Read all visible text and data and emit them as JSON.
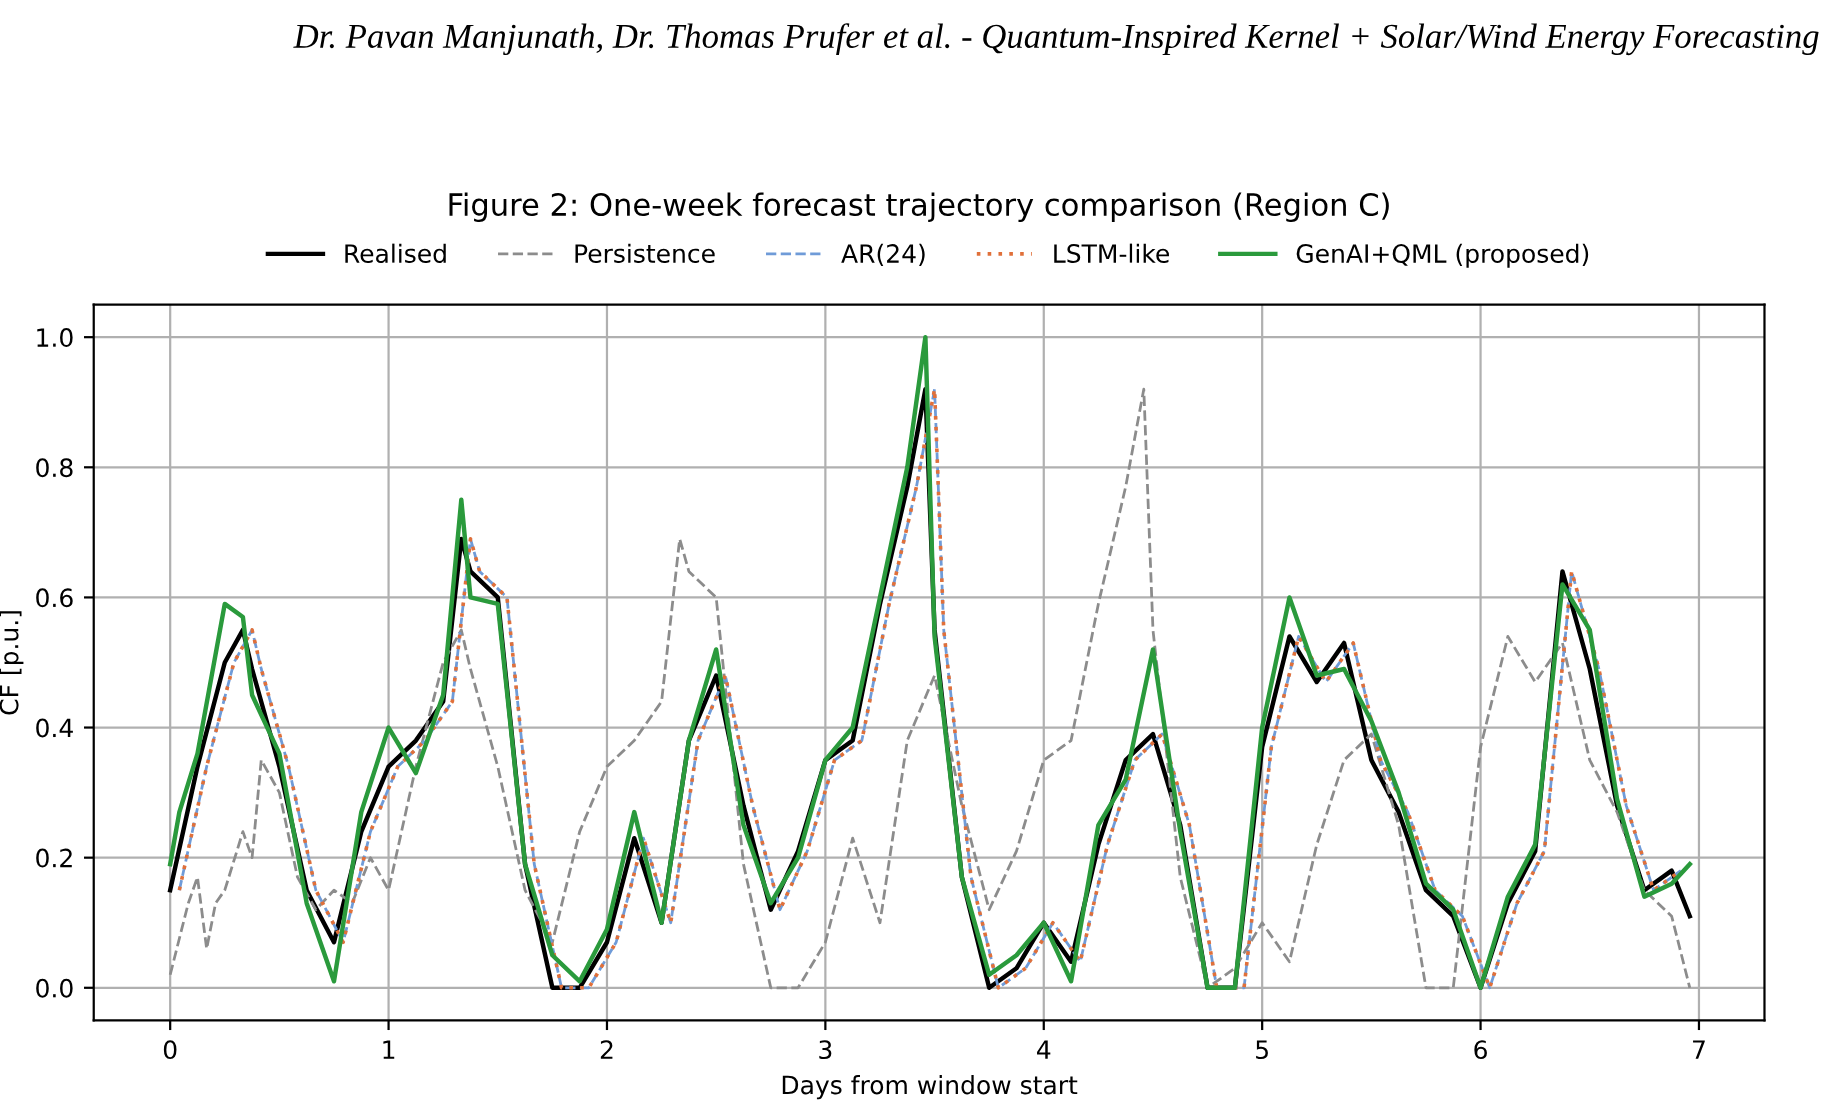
{
  "chart_data": {
    "type": "line",
    "title": "Figure 2: One-week forecast trajectory comparison (Region C)",
    "annotations": [
      "Dr. Pavan Manjunath, Dr. Thomas Prufer et al. - Quantum-Inspired Kernel + Solar/Wind Energy Forecasting"
    ],
    "xlabel": "Days from window start",
    "ylabel": "CF [p.u.]",
    "xlim": [
      -0.35,
      7.3
    ],
    "xticks": [
      0,
      1,
      2,
      3,
      4,
      5,
      6,
      7
    ],
    "ylim": [
      -0.05,
      1.05
    ],
    "yticks": [
      {
        "value": 0,
        "label": "0.0"
      },
      0.2,
      0.4,
      0.6,
      0.8,
      {
        "value": 1,
        "label": "1.0"
      }
    ],
    "grid": true,
    "legend": "top",
    "series": [
      {
        "name": "Realised",
        "color": "#000000",
        "line_style": "solid",
        "x": [
          0,
          0.125,
          0.25,
          0.333,
          0.375,
          0.5,
          0.625,
          0.75,
          0.875,
          1,
          1.125,
          1.25,
          1.333,
          1.375,
          1.5,
          1.625,
          1.75,
          1.875,
          2,
          2.125,
          2.25,
          2.375,
          2.5,
          2.625,
          2.75,
          2.875,
          3,
          3.125,
          3.25,
          3.375,
          3.458,
          3.5,
          3.625,
          3.75,
          3.875,
          4,
          4.125,
          4.25,
          4.375,
          4.5,
          4.625,
          4.75,
          4.875,
          5,
          5.125,
          5.25,
          5.375,
          5.5,
          5.625,
          5.75,
          5.875,
          6,
          6.125,
          6.25,
          6.375,
          6.5,
          6.625,
          6.75,
          6.875,
          6.958
        ],
        "values": [
          0.15,
          0.34,
          0.5,
          0.55,
          0.49,
          0.34,
          0.15,
          0.07,
          0.24,
          0.34,
          0.38,
          0.44,
          0.69,
          0.64,
          0.6,
          0.19,
          0,
          0,
          0.07,
          0.23,
          0.1,
          0.38,
          0.48,
          0.28,
          0.12,
          0.21,
          0.35,
          0.38,
          0.59,
          0.77,
          0.92,
          0.55,
          0.17,
          0,
          0.03,
          0.1,
          0.04,
          0.22,
          0.35,
          0.39,
          0.25,
          0,
          0,
          0.37,
          0.54,
          0.47,
          0.53,
          0.35,
          0.27,
          0.15,
          0.11,
          0,
          0.13,
          0.21,
          0.64,
          0.49,
          0.28,
          0.15,
          0.18,
          0.11
        ]
      },
      {
        "name": "Persistence",
        "color": "#8c8c8c",
        "line_style": "dashed",
        "x": [
          0,
          0.083,
          0.125,
          0.167,
          0.208,
          0.25,
          0.333,
          0.375,
          0.417,
          0.5,
          0.583,
          0.667,
          0.75,
          0.833,
          0.917,
          1,
          1.125,
          1.25,
          1.333,
          1.375,
          1.5,
          1.625,
          1.75,
          1.875,
          2,
          2.125,
          2.25,
          2.333,
          2.375,
          2.5,
          2.625,
          2.75,
          2.875,
          3,
          3.125,
          3.25,
          3.375,
          3.5,
          3.625,
          3.75,
          3.875,
          4,
          4.125,
          4.25,
          4.375,
          4.458,
          4.5,
          4.625,
          4.75,
          4.875,
          5,
          5.125,
          5.25,
          5.375,
          5.5,
          5.625,
          5.75,
          5.875,
          6,
          6.125,
          6.25,
          6.375,
          6.5,
          6.625,
          6.75,
          6.875,
          6.958
        ],
        "values": [
          0.02,
          0.13,
          0.17,
          0.06,
          0.13,
          0.15,
          0.24,
          0.2,
          0.35,
          0.3,
          0.17,
          0.12,
          0.15,
          0.13,
          0.2,
          0.15,
          0.34,
          0.5,
          0.55,
          0.49,
          0.34,
          0.15,
          0.07,
          0.24,
          0.34,
          0.38,
          0.44,
          0.69,
          0.64,
          0.6,
          0.19,
          0,
          0,
          0.07,
          0.23,
          0.1,
          0.38,
          0.48,
          0.28,
          0.12,
          0.21,
          0.35,
          0.38,
          0.59,
          0.77,
          0.92,
          0.55,
          0.17,
          0,
          0.03,
          0.1,
          0.04,
          0.22,
          0.35,
          0.39,
          0.25,
          0,
          0,
          0.37,
          0.54,
          0.47,
          0.53,
          0.35,
          0.27,
          0.15,
          0.11,
          0
        ]
      },
      {
        "name": "AR(24)",
        "color": "#6f9bd8",
        "line_style": "dashed",
        "x": [
          0.042,
          0.167,
          0.292,
          0.375,
          0.417,
          0.542,
          0.667,
          0.792,
          0.917,
          1.042,
          1.167,
          1.292,
          1.375,
          1.417,
          1.542,
          1.667,
          1.792,
          1.917,
          2.042,
          2.167,
          2.292,
          2.417,
          2.542,
          2.667,
          2.792,
          2.917,
          3.042,
          3.167,
          3.292,
          3.417,
          3.5,
          3.542,
          3.667,
          3.792,
          3.917,
          4.042,
          4.167,
          4.292,
          4.417,
          4.542,
          4.667,
          4.792,
          4.917,
          5.042,
          5.167,
          5.292,
          5.417,
          5.542,
          5.667,
          5.792,
          5.917,
          6.042,
          6.167,
          6.292,
          6.417,
          6.542,
          6.667,
          6.792,
          6.917
        ],
        "values": [
          0.15,
          0.34,
          0.5,
          0.55,
          0.49,
          0.34,
          0.15,
          0.07,
          0.24,
          0.34,
          0.38,
          0.44,
          0.69,
          0.64,
          0.6,
          0.19,
          0,
          0,
          0.07,
          0.23,
          0.1,
          0.38,
          0.48,
          0.28,
          0.12,
          0.21,
          0.35,
          0.38,
          0.59,
          0.77,
          0.92,
          0.55,
          0.17,
          0,
          0.03,
          0.1,
          0.04,
          0.22,
          0.35,
          0.39,
          0.25,
          0,
          0,
          0.37,
          0.54,
          0.47,
          0.53,
          0.35,
          0.27,
          0.15,
          0.11,
          0,
          0.13,
          0.21,
          0.64,
          0.49,
          0.28,
          0.15,
          0.18
        ]
      },
      {
        "name": "LSTM-like",
        "color": "#e0703a",
        "line_style": "dotted",
        "x": [
          0.042,
          0.167,
          0.292,
          0.375,
          0.417,
          0.542,
          0.667,
          0.792,
          0.917,
          1.042,
          1.167,
          1.292,
          1.375,
          1.417,
          1.542,
          1.667,
          1.792,
          1.917,
          2.042,
          2.167,
          2.292,
          2.417,
          2.542,
          2.667,
          2.792,
          2.917,
          3.042,
          3.167,
          3.292,
          3.417,
          3.5,
          3.542,
          3.667,
          3.792,
          3.917,
          4.042,
          4.167,
          4.292,
          4.417,
          4.542,
          4.667,
          4.792,
          4.917,
          5.042,
          5.167,
          5.292,
          5.417,
          5.542,
          5.667,
          5.792,
          5.917,
          6.042,
          6.167,
          6.292,
          6.417,
          6.542,
          6.667,
          6.792,
          6.917
        ],
        "values": [
          0.15,
          0.34,
          0.5,
          0.55,
          0.49,
          0.34,
          0.15,
          0.07,
          0.24,
          0.34,
          0.38,
          0.44,
          0.69,
          0.64,
          0.6,
          0.19,
          0,
          0,
          0.07,
          0.23,
          0.1,
          0.38,
          0.48,
          0.28,
          0.12,
          0.21,
          0.35,
          0.38,
          0.59,
          0.77,
          0.92,
          0.55,
          0.17,
          0,
          0.03,
          0.1,
          0.04,
          0.22,
          0.35,
          0.39,
          0.25,
          0,
          0,
          0.37,
          0.54,
          0.47,
          0.53,
          0.35,
          0.27,
          0.15,
          0.11,
          0,
          0.13,
          0.21,
          0.64,
          0.49,
          0.28,
          0.15,
          0.18
        ]
      },
      {
        "name": "GenAI+QML (proposed)",
        "color": "#2a9a3c",
        "line_style": "solid",
        "x": [
          0,
          0.042,
          0.125,
          0.25,
          0.333,
          0.375,
          0.5,
          0.625,
          0.75,
          0.875,
          1,
          1.125,
          1.25,
          1.333,
          1.375,
          1.5,
          1.625,
          1.75,
          1.875,
          2,
          2.125,
          2.25,
          2.375,
          2.5,
          2.625,
          2.75,
          2.875,
          3,
          3.125,
          3.25,
          3.375,
          3.458,
          3.5,
          3.625,
          3.75,
          3.875,
          4,
          4.125,
          4.25,
          4.375,
          4.5,
          4.625,
          4.75,
          4.875,
          5,
          5.125,
          5.25,
          5.375,
          5.5,
          5.625,
          5.75,
          5.875,
          6,
          6.125,
          6.25,
          6.375,
          6.5,
          6.625,
          6.75,
          6.875,
          6.958
        ],
        "values": [
          0.19,
          0.27,
          0.36,
          0.59,
          0.57,
          0.45,
          0.36,
          0.13,
          0.01,
          0.27,
          0.4,
          0.33,
          0.45,
          0.75,
          0.6,
          0.59,
          0.19,
          0.05,
          0.01,
          0.09,
          0.27,
          0.1,
          0.38,
          0.52,
          0.25,
          0.13,
          0.2,
          0.35,
          0.4,
          0.6,
          0.8,
          1.0,
          0.54,
          0.17,
          0.02,
          0.05,
          0.1,
          0.01,
          0.25,
          0.32,
          0.52,
          0.24,
          0,
          0,
          0.4,
          0.6,
          0.48,
          0.49,
          0.41,
          0.3,
          0.16,
          0.12,
          0,
          0.14,
          0.22,
          0.62,
          0.55,
          0.29,
          0.14,
          0.16,
          0.19
        ]
      }
    ]
  }
}
